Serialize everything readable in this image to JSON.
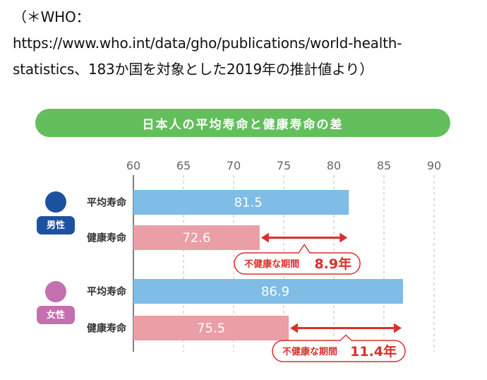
{
  "note": {
    "line1": "（＊WHO：",
    "line2": "https://www.who.int/data/gho/publications/world-health-",
    "line3": "statistics、183か国を対象とした2019年の推計値より）"
  },
  "colors": {
    "banner": "#63bf5c",
    "avg_bar": "#7fbce6",
    "healthy_bar": "#ea9ea6",
    "male_icon": "#1d52a0",
    "female_icon": "#c46fae",
    "gap_arrow": "#d9302c"
  },
  "chart_data": {
    "type": "bar",
    "orientation": "horizontal",
    "title": "日本人の平均寿命と健康寿命の差",
    "xlim": [
      60,
      90
    ],
    "xticks": [
      60,
      65,
      70,
      75,
      80,
      85,
      90
    ],
    "grid": true,
    "groups": [
      {
        "label": "男性",
        "icon": "person-icon",
        "bars": [
          {
            "label": "平均寿命",
            "value": 81.5,
            "kind": "average"
          },
          {
            "label": "健康寿命",
            "value": 72.6,
            "kind": "healthy"
          }
        ],
        "gap": {
          "label": "不健康な期間",
          "value": "8.9年"
        }
      },
      {
        "label": "女性",
        "icon": "person-icon",
        "bars": [
          {
            "label": "平均寿命",
            "value": 86.9,
            "kind": "average"
          },
          {
            "label": "健康寿命",
            "value": 75.5,
            "kind": "healthy"
          }
        ],
        "gap": {
          "label": "不健康な期間",
          "value": "11.4年"
        }
      }
    ]
  }
}
